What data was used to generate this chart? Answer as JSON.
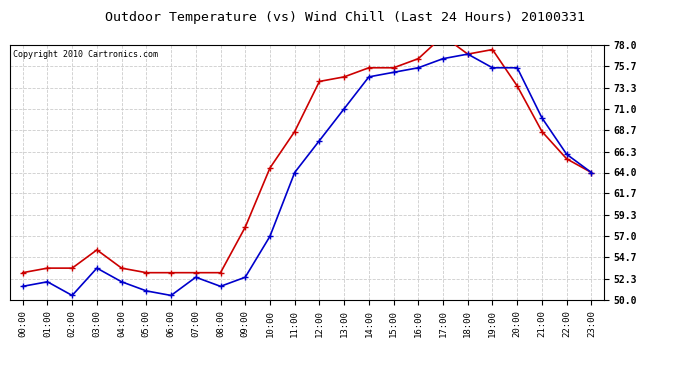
{
  "title": "Outdoor Temperature (vs) Wind Chill (Last 24 Hours) 20100331",
  "copyright": "Copyright 2010 Cartronics.com",
  "x_labels": [
    "00:00",
    "01:00",
    "02:00",
    "03:00",
    "04:00",
    "05:00",
    "06:00",
    "07:00",
    "08:00",
    "09:00",
    "10:00",
    "11:00",
    "12:00",
    "13:00",
    "14:00",
    "15:00",
    "16:00",
    "17:00",
    "18:00",
    "19:00",
    "20:00",
    "21:00",
    "22:00",
    "23:00"
  ],
  "red_temp": [
    53.0,
    53.5,
    53.5,
    55.5,
    53.5,
    53.0,
    53.0,
    53.0,
    53.0,
    58.0,
    64.5,
    68.5,
    74.0,
    74.5,
    75.5,
    75.5,
    76.5,
    79.0,
    77.0,
    77.5,
    73.5,
    68.5,
    65.5,
    64.0
  ],
  "blue_windchill": [
    51.5,
    52.0,
    50.5,
    53.5,
    52.0,
    51.0,
    50.5,
    52.5,
    51.5,
    52.5,
    57.0,
    64.0,
    67.5,
    71.0,
    74.5,
    75.0,
    75.5,
    76.5,
    77.0,
    75.5,
    75.5,
    70.0,
    66.0,
    64.0
  ],
  "red_color": "#cc0000",
  "blue_color": "#0000cc",
  "bg_color": "#ffffff",
  "plot_bg_color": "#ffffff",
  "grid_color": "#cccccc",
  "ylim": [
    50.0,
    78.0
  ],
  "yticks": [
    50.0,
    52.3,
    54.7,
    57.0,
    59.3,
    61.7,
    64.0,
    66.3,
    68.7,
    71.0,
    73.3,
    75.7,
    78.0
  ],
  "title_fontsize": 9.5,
  "copyright_fontsize": 6.0,
  "tick_fontsize": 6.5,
  "ytick_fontsize": 7.0
}
